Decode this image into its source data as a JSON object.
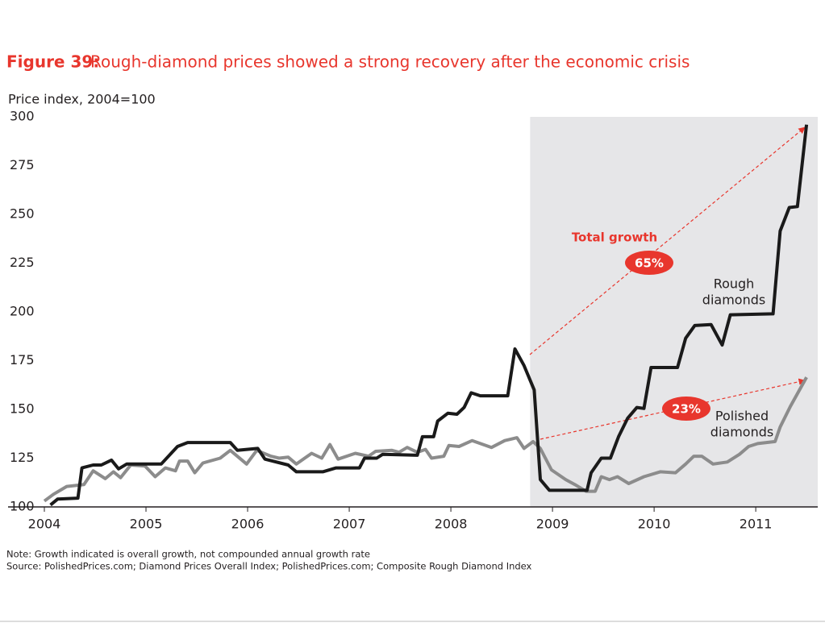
{
  "chart_data": {
    "type": "line",
    "title_label": "Figure 39:",
    "title": "Rough-diamond prices showed a strong recovery after the economic crisis",
    "y_label": "Price index, 2004=100",
    "xlim": [
      2004,
      2011.61
    ],
    "ylim": [
      100,
      300
    ],
    "xticks": [
      2004,
      2005,
      2006,
      2007,
      2008,
      2009,
      2010,
      2011
    ],
    "yticks": [
      100,
      125,
      150,
      175,
      200,
      225,
      250,
      275,
      300
    ],
    "highlight": {
      "x": [
        2008.78,
        2011.61
      ],
      "color": "#e6e6e8"
    },
    "series": [
      {
        "name": [
          "Rough",
          "diamonds"
        ],
        "color": "#1a1a1a",
        "x": [
          2004.06,
          2004.13,
          2004.33,
          2004.37,
          2004.48,
          2004.56,
          2004.66,
          2004.73,
          2004.81,
          2005.15,
          2005.31,
          2005.41,
          2005.83,
          2005.9,
          2006.1,
          2006.17,
          2006.4,
          2006.48,
          2006.74,
          2006.87,
          2007.1,
          2007.15,
          2007.27,
          2007.33,
          2007.67,
          2007.72,
          2007.83,
          2007.87,
          2007.97,
          2008.06,
          2008.13,
          2008.2,
          2008.29,
          2008.56,
          2008.63,
          2008.72,
          2008.82,
          2008.88,
          2008.97,
          2009.34,
          2009.38,
          2009.48,
          2009.57,
          2009.65,
          2009.74,
          2009.83,
          2009.9,
          2009.97,
          2010.23,
          2010.31,
          2010.4,
          2010.56,
          2010.67,
          2010.75,
          2011.17,
          2011.24,
          2011.33,
          2011.41,
          2011.5
        ],
        "values": [
          101,
          104,
          104.5,
          120,
          121.5,
          121.5,
          124,
          119.5,
          122,
          122,
          131,
          133,
          133,
          129,
          130,
          124.5,
          121.5,
          118,
          118,
          120,
          120,
          125,
          125,
          127,
          126.5,
          136,
          136,
          144,
          148,
          147.5,
          151,
          158.5,
          157,
          157,
          181,
          172.5,
          160,
          114,
          108.5,
          108.5,
          117.5,
          125,
          125,
          136,
          145.5,
          151,
          150.5,
          171.5,
          171.5,
          186.5,
          193,
          193.5,
          183,
          198.5,
          199,
          241.5,
          253.5,
          254,
          296
        ]
      },
      {
        "name": [
          "Polished",
          "diamonds"
        ],
        "color": "#8c8c8c",
        "x": [
          2004.0,
          2004.09,
          2004.22,
          2004.39,
          2004.48,
          2004.6,
          2004.68,
          2004.75,
          2004.85,
          2004.99,
          2005.09,
          2005.19,
          2005.29,
          2005.33,
          2005.41,
          2005.48,
          2005.56,
          2005.73,
          2005.83,
          2005.99,
          2006.09,
          2006.23,
          2006.31,
          2006.4,
          2006.48,
          2006.63,
          2006.73,
          2006.81,
          2006.89,
          2007.06,
          2007.19,
          2007.26,
          2007.42,
          2007.49,
          2007.57,
          2007.67,
          2007.75,
          2007.81,
          2007.93,
          2007.98,
          2008.08,
          2008.21,
          2008.4,
          2008.53,
          2008.65,
          2008.72,
          2008.81,
          2008.88,
          2008.99,
          2009.13,
          2009.22,
          2009.33,
          2009.42,
          2009.48,
          2009.56,
          2009.64,
          2009.75,
          2009.9,
          2010.06,
          2010.21,
          2010.31,
          2010.39,
          2010.47,
          2010.58,
          2010.72,
          2010.84,
          2010.93,
          2011.02,
          2011.19,
          2011.24,
          2011.34,
          2011.5
        ],
        "values": [
          103,
          106.5,
          110.5,
          111.5,
          118.5,
          114.5,
          118,
          115,
          121.5,
          121,
          115.5,
          120,
          118.5,
          123.5,
          123.5,
          117.5,
          122.5,
          125,
          129,
          122,
          129,
          126,
          125,
          125.5,
          122,
          127.5,
          125,
          132,
          124.5,
          127.5,
          126,
          128.5,
          129,
          128,
          130.5,
          128,
          129.5,
          125,
          126,
          131.5,
          131,
          134,
          130.5,
          134,
          135.5,
          130,
          133.5,
          130,
          119,
          114,
          111.5,
          108,
          108,
          115.5,
          114,
          115.5,
          112,
          115.5,
          118,
          117.5,
          122,
          126,
          126,
          122,
          123,
          127,
          131,
          132.5,
          133.5,
          141,
          151.5,
          166.5
        ]
      }
    ],
    "annotations": {
      "total_growth": "Total growth",
      "rough_growth": "65%",
      "polished_growth": "23%"
    },
    "note": "Note: Growth indicated is overall growth, not compounded annual growth rate",
    "source": "Source: PolishedPrices.com; Diamond Prices Overall Index; PolishedPrices.com; Composite Rough Diamond Index"
  }
}
